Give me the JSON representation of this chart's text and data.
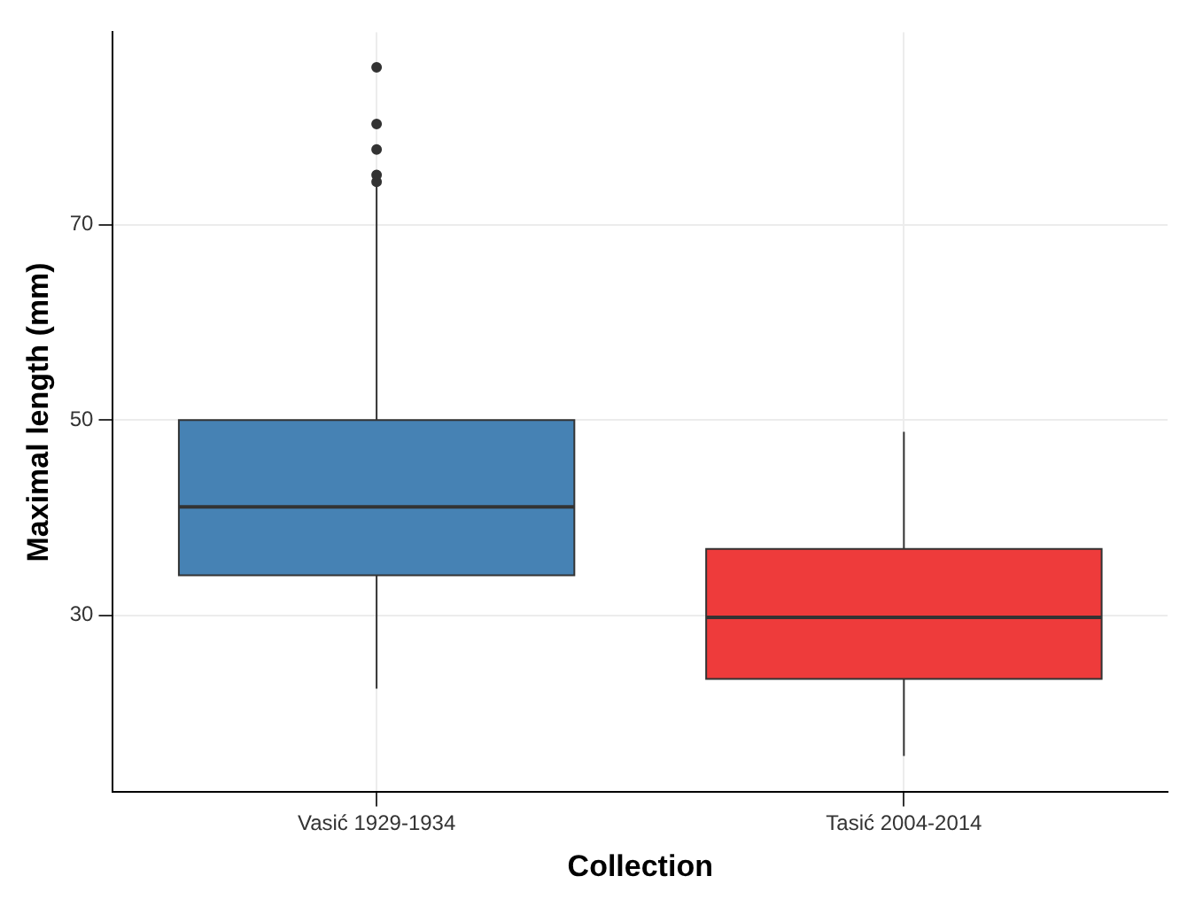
{
  "chart_data": {
    "type": "box",
    "xlabel": "Collection",
    "ylabel": "Maximal length (mm)",
    "categories": [
      "Vasić 1929-1934",
      "Tasić 2004-2014"
    ],
    "colors": [
      "#4682b4",
      "#ee3b3b"
    ],
    "boxes": [
      {
        "low": 22.5,
        "q1": 34.1,
        "median": 41.1,
        "q3": 50,
        "high": 74.6,
        "outliers": [
          74.4,
          75.1,
          77.7,
          80.3,
          86.1
        ]
      },
      {
        "low": 15.6,
        "q1": 23.5,
        "median": 29.8,
        "q3": 36.8,
        "high": 48.8
      }
    ],
    "ylim": [
      11.9,
      89.7
    ],
    "yticks": [
      30,
      50,
      70
    ],
    "grid": true,
    "legend": false
  }
}
